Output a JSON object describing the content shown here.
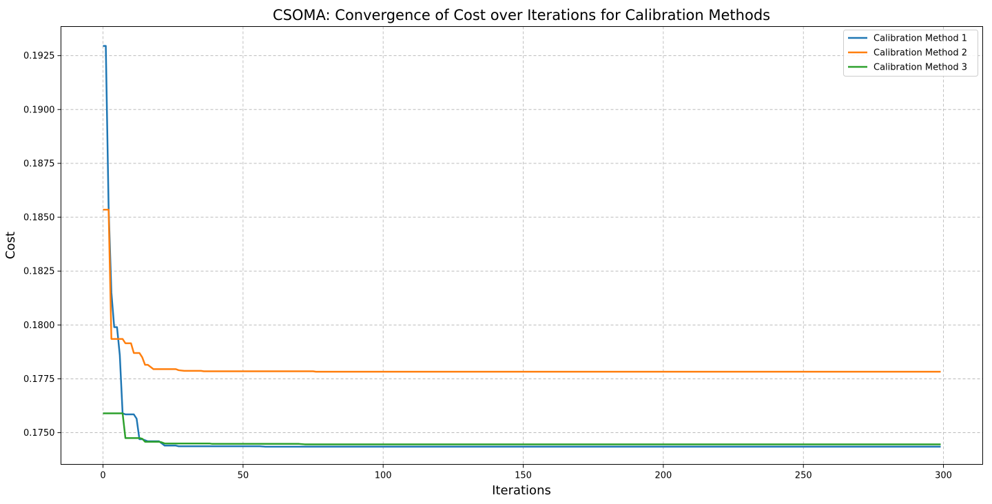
{
  "chart_data": {
    "type": "line",
    "title": "CSOMA: Convergence of Cost over Iterations for Calibration Methods",
    "xlabel": "Iterations",
    "ylabel": "Cost",
    "xlim": [
      -15,
      314
    ],
    "ylim": [
      0.17353,
      0.19385
    ],
    "xticks": [
      0,
      50,
      100,
      150,
      200,
      250,
      300
    ],
    "yticks": [
      0.175,
      0.1775,
      0.18,
      0.1825,
      0.185,
      0.1875,
      0.19,
      0.1925
    ],
    "xtick_labels": [
      "0",
      "50",
      "100",
      "150",
      "200",
      "250",
      "300"
    ],
    "ytick_labels": [
      "0.1750",
      "0.1775",
      "0.1800",
      "0.1825",
      "0.1850",
      "0.1875",
      "0.1900",
      "0.1925"
    ],
    "grid": true,
    "legend_position": "top-right",
    "series": [
      {
        "name": "Calibration Method 1",
        "color": "#1f77b4",
        "points": [
          [
            0,
            0.19295
          ],
          [
            1,
            0.19295
          ],
          [
            2,
            0.1855
          ],
          [
            3,
            0.1815
          ],
          [
            4,
            0.1799
          ],
          [
            5,
            0.1799
          ],
          [
            6,
            0.1786
          ],
          [
            7,
            0.1759
          ],
          [
            8,
            0.17585
          ],
          [
            11,
            0.17585
          ],
          [
            12,
            0.17565
          ],
          [
            13,
            0.1747
          ],
          [
            14,
            0.1747
          ],
          [
            15,
            0.17465
          ],
          [
            16,
            0.1746
          ],
          [
            20,
            0.1746
          ],
          [
            22,
            0.1744
          ],
          [
            26,
            0.1744
          ],
          [
            27,
            0.17437
          ],
          [
            56,
            0.17437
          ],
          [
            58,
            0.17435
          ],
          [
            299,
            0.17435
          ]
        ]
      },
      {
        "name": "Calibration Method 2",
        "color": "#ff7f0e",
        "points": [
          [
            0,
            0.18535
          ],
          [
            1,
            0.18535
          ],
          [
            2,
            0.18535
          ],
          [
            3,
            0.17935
          ],
          [
            6,
            0.17935
          ],
          [
            7,
            0.17935
          ],
          [
            8,
            0.17915
          ],
          [
            10,
            0.17915
          ],
          [
            11,
            0.1787
          ],
          [
            13,
            0.1787
          ],
          [
            14,
            0.1785
          ],
          [
            15,
            0.17815
          ],
          [
            16,
            0.17815
          ],
          [
            18,
            0.17795
          ],
          [
            26,
            0.17795
          ],
          [
            27,
            0.1779
          ],
          [
            29,
            0.17787
          ],
          [
            35,
            0.17787
          ],
          [
            36,
            0.17785
          ],
          [
            75,
            0.17785
          ],
          [
            76,
            0.17783
          ],
          [
            299,
            0.17783
          ]
        ]
      },
      {
        "name": "Calibration Method 3",
        "color": "#2ca02c",
        "points": [
          [
            0,
            0.1759
          ],
          [
            6,
            0.1759
          ],
          [
            7,
            0.1759
          ],
          [
            8,
            0.17475
          ],
          [
            13,
            0.17475
          ],
          [
            14,
            0.17472
          ],
          [
            15,
            0.17458
          ],
          [
            20,
            0.17458
          ],
          [
            21,
            0.17455
          ],
          [
            22,
            0.1745
          ],
          [
            38,
            0.1745
          ],
          [
            39,
            0.17448
          ],
          [
            70,
            0.17448
          ],
          [
            72,
            0.17446
          ],
          [
            299,
            0.17446
          ]
        ]
      }
    ]
  }
}
